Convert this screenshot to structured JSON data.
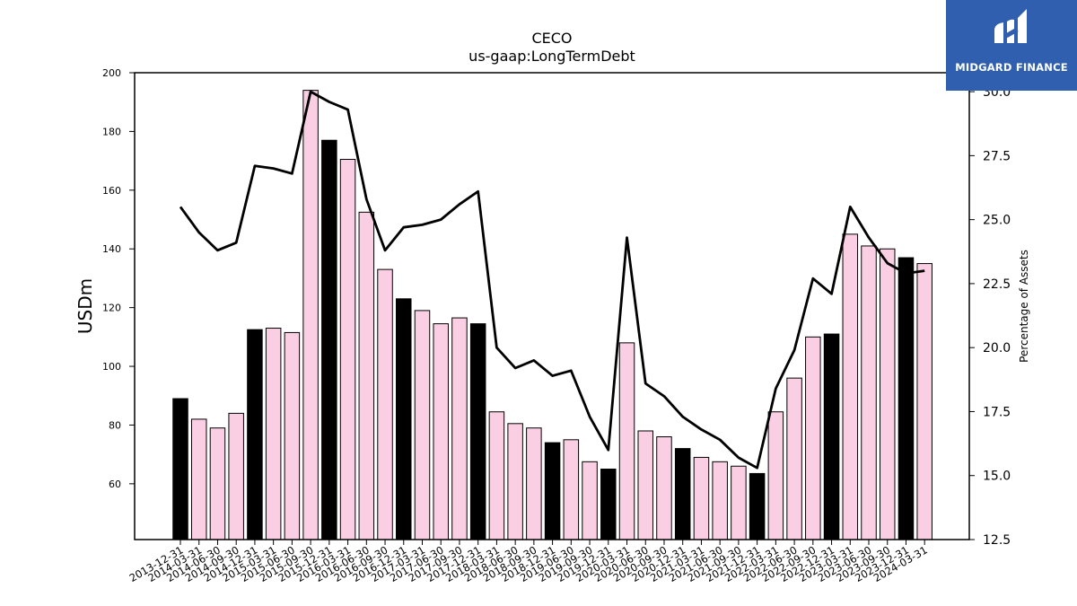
{
  "chart_data": {
    "type": "bar",
    "title": "CECO",
    "subtitle": "us-gaap:LongTermDebt",
    "ylabel": "USDm",
    "y2label": "Percentage of Assets",
    "ylim": [
      41,
      200
    ],
    "y2lim": [
      12.5,
      30.74
    ],
    "yticks": [
      60,
      80,
      100,
      120,
      140,
      160,
      180,
      200
    ],
    "y2ticks": [
      "12.5",
      "15.0",
      "17.5",
      "20.0",
      "22.5",
      "25.0",
      "27.5",
      "30.0"
    ],
    "categories": [
      "2013-12-31",
      "2014-03-31",
      "2014-06-30",
      "2014-09-30",
      "2014-12-31",
      "2015-03-31",
      "2015-06-30",
      "2015-09-30",
      "2015-12-31",
      "2016-03-31",
      "2016-06-30",
      "2016-09-30",
      "2016-12-31",
      "2017-03-31",
      "2017-06-30",
      "2017-09-30",
      "2017-12-31",
      "2018-03-31",
      "2018-06-30",
      "2018-09-30",
      "2018-12-31",
      "2019-06-30",
      "2019-09-30",
      "2019-12-31",
      "2020-03-31",
      "2020-06-30",
      "2020-09-30",
      "2020-12-31",
      "2021-03-31",
      "2021-06-30",
      "2021-09-30",
      "2021-12-31",
      "2022-03-31",
      "2022-06-30",
      "2022-09-30",
      "2022-12-31",
      "2023-03-31",
      "2023-06-30",
      "2023-09-30",
      "2023-12-31",
      "2024-03-31"
    ],
    "series": [
      {
        "type": "bar",
        "values": [
          89,
          82,
          79,
          84,
          112.5,
          113,
          111.5,
          194,
          177,
          170.5,
          152.5,
          133,
          123,
          119,
          114.5,
          116.5,
          114.5,
          84.5,
          80.5,
          79,
          74,
          75,
          67.5,
          65,
          108,
          78,
          76,
          72,
          69,
          67.5,
          66,
          63.5,
          84.5,
          96,
          110,
          111,
          145,
          141,
          140,
          137,
          135
        ],
        "highlight": [
          true,
          false,
          false,
          false,
          true,
          false,
          false,
          false,
          true,
          false,
          false,
          false,
          true,
          false,
          false,
          false,
          true,
          false,
          false,
          false,
          true,
          false,
          false,
          true,
          false,
          false,
          false,
          true,
          false,
          false,
          false,
          true,
          false,
          false,
          false,
          true,
          false,
          false,
          false,
          true,
          false
        ]
      },
      {
        "type": "line",
        "axis": "right",
        "values": [
          25.5,
          24.5,
          23.8,
          24.1,
          27.1,
          27.0,
          26.8,
          30.0,
          29.6,
          29.3,
          25.8,
          23.8,
          24.7,
          24.8,
          25.0,
          25.6,
          26.1,
          20.0,
          19.2,
          19.5,
          18.9,
          19.1,
          17.3,
          16.0,
          24.3,
          18.6,
          18.1,
          17.3,
          16.8,
          16.4,
          15.7,
          15.3,
          18.4,
          19.9,
          22.7,
          22.1,
          25.5,
          24.3,
          23.3,
          22.9,
          23.0
        ]
      }
    ],
    "colors": {
      "bar_highlight": "#000000",
      "bar_normal": "#fbcfe3",
      "bar_edge": "#000000",
      "line": "#000000"
    }
  },
  "logo": {
    "text": "MIDGARD FINANCE",
    "background": "#2f5fae"
  }
}
